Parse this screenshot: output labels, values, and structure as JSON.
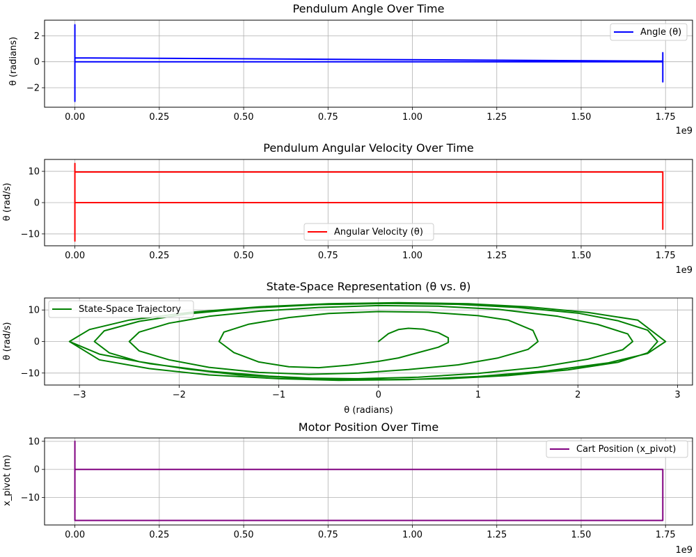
{
  "chart_data": [
    {
      "type": "line",
      "title": "Pendulum Angle Over Time",
      "xlabel": "",
      "ylabel": "θ (radians)",
      "xlim": [
        -90000000,
        1830000000
      ],
      "ylim": [
        -3.5,
        3.2
      ],
      "xticks": [
        0,
        250000000,
        500000000,
        750000000,
        1000000000,
        1250000000,
        1500000000,
        1750000000
      ],
      "xtick_labels": [
        "0.00",
        "0.25",
        "0.50",
        "0.75",
        "1.00",
        "1.25",
        "1.50",
        "1.75"
      ],
      "yticks": [
        -2,
        0,
        2
      ],
      "ytick_labels": [
        "−2",
        "0",
        "2"
      ],
      "x_offset_label": "1e9",
      "grid": true,
      "legend_position": "upper right",
      "series": [
        {
          "name": "Angle (θ)",
          "color": "#0000ff",
          "x": [
            0,
            0,
            0,
            0,
            0,
            1742000000,
            1742000000,
            1742000000,
            1742000000,
            1742000000,
            0
          ],
          "y": [
            0,
            2.85,
            -3.05,
            2.6,
            0.3,
            0.05,
            0.7,
            -1.55,
            0.4,
            0.0,
            0.0
          ]
        }
      ]
    },
    {
      "type": "line",
      "title": "Pendulum Angular Velocity Over Time",
      "xlabel": "",
      "ylabel": "θ (rad/s)",
      "xlim": [
        -90000000,
        1830000000
      ],
      "ylim": [
        -13.8,
        13.8
      ],
      "xticks": [
        0,
        250000000,
        500000000,
        750000000,
        1000000000,
        1250000000,
        1500000000,
        1750000000
      ],
      "xtick_labels": [
        "0.00",
        "0.25",
        "0.50",
        "0.75",
        "1.00",
        "1.25",
        "1.50",
        "1.75"
      ],
      "yticks": [
        -10,
        0,
        10
      ],
      "ytick_labels": [
        "−10",
        "0",
        "10"
      ],
      "x_offset_label": "1e9",
      "grid": true,
      "legend_position": "lower center",
      "series": [
        {
          "name": "Angular Velocity (θ)",
          "color": "#ff0000",
          "x": [
            0,
            0,
            0,
            0,
            1742000000,
            1742000000,
            1742000000,
            1742000000,
            0
          ],
          "y": [
            0,
            12.5,
            -12.3,
            9.8,
            9.8,
            -8.5,
            6.0,
            0.0,
            0.0
          ]
        }
      ]
    },
    {
      "type": "line",
      "title": "State-Space Representation (θ vs. θ)",
      "xlabel": "θ (radians)",
      "ylabel": "θ (rad/s)",
      "xlim": [
        -3.35,
        3.15
      ],
      "ylim": [
        -13.8,
        13.8
      ],
      "xticks": [
        -3,
        -2,
        -1,
        0,
        1,
        2,
        3
      ],
      "xtick_labels": [
        "−3",
        "−2",
        "−1",
        "0",
        "1",
        "2",
        "3"
      ],
      "yticks": [
        -10,
        0,
        10
      ],
      "ytick_labels": [
        "−10",
        "0",
        "10"
      ],
      "grid": true,
      "legend_position": "upper left",
      "series": [
        {
          "name": "State-Space Trajectory",
          "color": "#008000",
          "x": [
            0,
            0.1,
            0.2,
            0.3,
            0.45,
            0.6,
            0.7,
            0.7,
            0.6,
            0.4,
            0.2,
            0,
            -0.3,
            -0.6,
            -0.9,
            -1.2,
            -1.45,
            -1.6,
            -1.55,
            -1.3,
            -0.9,
            -0.5,
            0,
            0.5,
            1.0,
            1.3,
            1.55,
            1.6,
            1.5,
            1.2,
            0.8,
            0.3,
            -0.2,
            -0.7,
            -1.2,
            -1.7,
            -2.1,
            -2.4,
            -2.5,
            -2.4,
            -2.1,
            -1.7,
            -1.2,
            -0.6,
            0,
            0.6,
            1.2,
            1.8,
            2.2,
            2.5,
            2.55,
            2.45,
            2.1,
            1.6,
            1.0,
            0.4,
            -0.2,
            -0.8,
            -1.4,
            -1.9,
            -2.4,
            -2.7,
            -2.85,
            -2.75,
            -2.4,
            -1.9,
            -1.3,
            -0.6,
            0.1,
            0.8,
            1.4,
            2.0,
            2.4,
            2.7,
            2.8,
            2.7,
            2.4,
            1.9,
            1.3,
            0.7,
            0.1,
            -0.5,
            -1.1,
            -1.7,
            -2.3,
            -2.8,
            -3.1,
            -2.9,
            -2.5,
            -1.9,
            -1.2,
            -0.5,
            0.2,
            0.9,
            1.5,
            2.1,
            2.6,
            2.88,
            2.7,
            2.3,
            1.7,
            1.0,
            0.3,
            -0.4,
            -1.0,
            -1.7,
            -2.3,
            -2.8,
            -3.1
          ],
          "y": [
            0,
            2.5,
            3.8,
            4.2,
            3.9,
            2.8,
            1.2,
            -0.3,
            -1.8,
            -3.5,
            -5.2,
            -6.3,
            -7.5,
            -8.3,
            -8.0,
            -6.5,
            -3.5,
            0,
            3.0,
            5.5,
            7.6,
            8.9,
            9.5,
            9.3,
            8.2,
            6.8,
            3.5,
            0,
            -2.5,
            -5.2,
            -7.4,
            -8.9,
            -10.0,
            -10.4,
            -9.8,
            -8.2,
            -5.8,
            -3.0,
            0,
            3.0,
            5.8,
            8.0,
            9.6,
            10.8,
            11.4,
            11.2,
            10.2,
            8.0,
            5.4,
            2.4,
            0,
            -2.6,
            -5.6,
            -8.2,
            -10.1,
            -11.3,
            -11.8,
            -11.6,
            -10.6,
            -8.8,
            -6.4,
            -3.6,
            0,
            3.4,
            6.4,
            8.8,
            10.6,
            11.7,
            12.1,
            11.8,
            10.8,
            9.0,
            6.6,
            3.6,
            0,
            -3.6,
            -6.6,
            -9.0,
            -10.8,
            -11.8,
            -12.1,
            -11.9,
            -11.0,
            -9.4,
            -7.0,
            -4.0,
            0,
            3.8,
            6.8,
            9.2,
            11.0,
            12.0,
            12.3,
            12.0,
            11.0,
            9.2,
            6.8,
            0,
            -3.8,
            -6.8,
            -9.3,
            -11.1,
            -12.1,
            -12.3,
            -11.8,
            -10.6,
            -8.6,
            -5.8,
            0
          ]
        }
      ]
    },
    {
      "type": "line",
      "title": "Motor Position Over Time",
      "xlabel": "",
      "ylabel": "x_pivot (m)",
      "xlim": [
        -90000000,
        1830000000
      ],
      "ylim": [
        -19.8,
        11.2
      ],
      "xticks": [
        0,
        250000000,
        500000000,
        750000000,
        1000000000,
        1250000000,
        1500000000,
        1750000000
      ],
      "xtick_labels": [
        "0.00",
        "0.25",
        "0.50",
        "0.75",
        "1.00",
        "1.25",
        "1.50",
        "1.75"
      ],
      "yticks": [
        -10,
        0,
        10
      ],
      "ytick_labels": [
        "−10",
        "0",
        "10"
      ],
      "x_offset_label": "1e9",
      "grid": true,
      "legend_position": "upper right",
      "series": [
        {
          "name": "Cart Position (x_pivot)",
          "color": "#800080",
          "x": [
            0,
            0,
            0,
            0,
            1742000000,
            1742000000,
            0
          ],
          "y": [
            10,
            0,
            -18.2,
            -18.2,
            -18.2,
            0,
            0
          ]
        }
      ]
    }
  ]
}
